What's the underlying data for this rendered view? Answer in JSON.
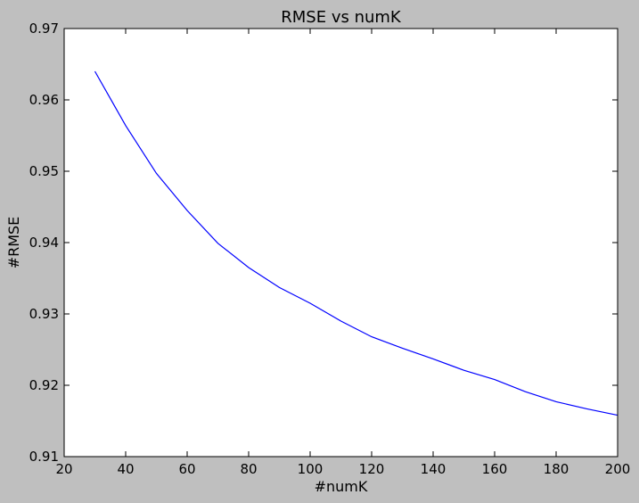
{
  "chart_data": {
    "type": "line",
    "title": "RMSE vs numK",
    "xlabel": "#numK",
    "ylabel": "#RMSE",
    "xlim": [
      20,
      200
    ],
    "ylim": [
      0.91,
      0.97
    ],
    "xticks": [
      20,
      40,
      60,
      80,
      100,
      120,
      140,
      160,
      180,
      200
    ],
    "yticks": [
      0.91,
      0.92,
      0.93,
      0.94,
      0.95,
      0.96,
      0.97
    ],
    "xtick_labels": [
      "20",
      "40",
      "60",
      "80",
      "100",
      "120",
      "140",
      "160",
      "180",
      "200"
    ],
    "ytick_labels": [
      "0.91",
      "0.92",
      "0.93",
      "0.94",
      "0.95",
      "0.96",
      "0.97"
    ],
    "grid": false,
    "legend": null,
    "series": [
      {
        "color": "#0000ff",
        "x": [
          30,
          40,
          50,
          60,
          70,
          80,
          90,
          100,
          110,
          120,
          130,
          140,
          150,
          160,
          170,
          180,
          190,
          200
        ],
        "y": [
          0.964,
          0.9564,
          0.9497,
          0.9445,
          0.9399,
          0.9365,
          0.9337,
          0.9315,
          0.929,
          0.9268,
          0.9252,
          0.9237,
          0.9221,
          0.9208,
          0.9191,
          0.9177,
          0.9167,
          0.9158
        ]
      }
    ]
  },
  "colors": {
    "background": "#bfbfbf",
    "plot_area": "#ffffff",
    "line": "#0000ff"
  }
}
